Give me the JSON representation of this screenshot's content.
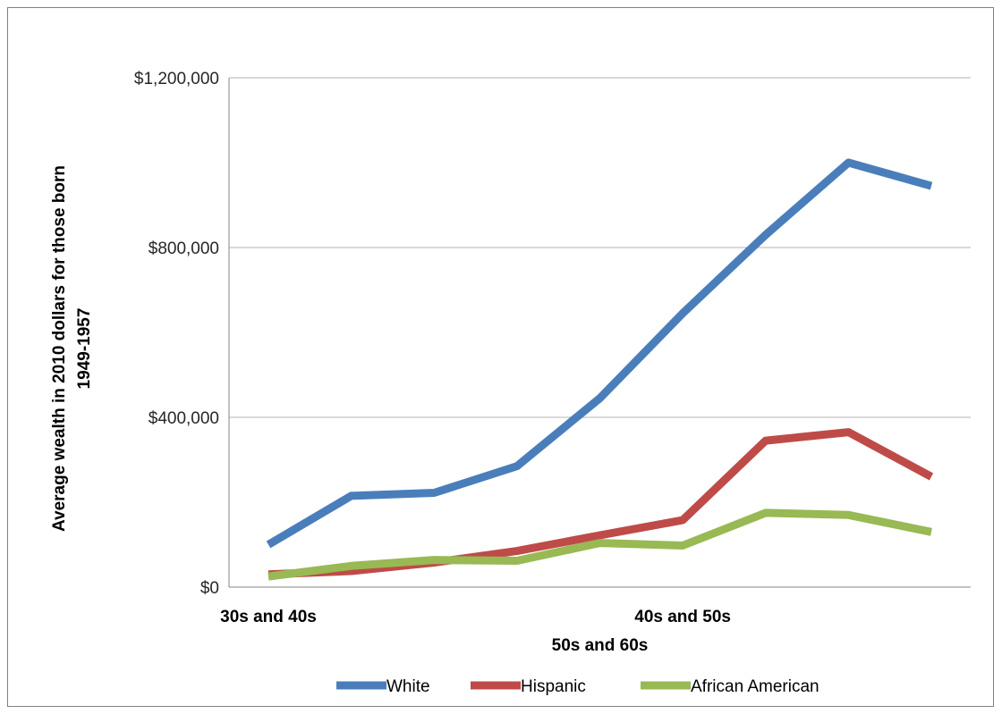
{
  "chart_data": {
    "type": "line",
    "title": "",
    "ylabel_lines": [
      "Average wealth in  2010 dollars for those born",
      "1949-1957"
    ],
    "ylim": [
      0,
      1200000
    ],
    "y_ticks": [
      {
        "value": 0,
        "label": "$0"
      },
      {
        "value": 400000,
        "label": "$400,000"
      },
      {
        "value": 800000,
        "label": "$800,000"
      },
      {
        "value": 1200000,
        "label": "$1,200,000"
      }
    ],
    "x": [
      1,
      2,
      3,
      4,
      5,
      6,
      7,
      8,
      9
    ],
    "x_category_labels": [
      {
        "label": "30s and 40s",
        "at": 1,
        "row": 1
      },
      {
        "label": "40s and 50s",
        "at": 6,
        "row": 1
      },
      {
        "label": "50s and 60s",
        "at": 5,
        "row": 2
      }
    ],
    "series": [
      {
        "name": "White",
        "color": "#4a7ebb",
        "values": [
          100000,
          215000,
          222000,
          285000,
          445000,
          645000,
          830000,
          1000000,
          945000
        ]
      },
      {
        "name": "Hispanic",
        "color": "#be4b48",
        "values": [
          30000,
          38000,
          58000,
          85000,
          122000,
          158000,
          345000,
          365000,
          260000
        ]
      },
      {
        "name": "African American",
        "color": "#98b954",
        "values": [
          25000,
          50000,
          64000,
          62000,
          104000,
          98000,
          175000,
          170000,
          130000
        ]
      }
    ],
    "grid": true,
    "legend_position": "bottom"
  }
}
